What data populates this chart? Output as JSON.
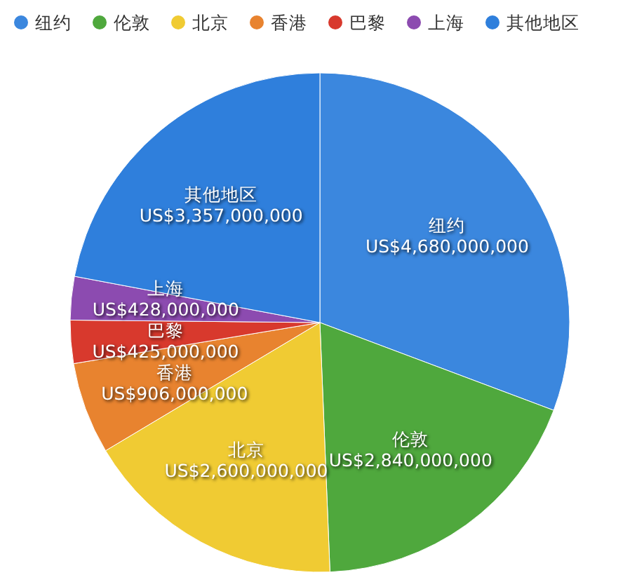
{
  "chart_data": {
    "type": "pie",
    "categories": [
      "纽约",
      "伦敦",
      "北京",
      "香港",
      "巴黎",
      "上海",
      "其他地区"
    ],
    "values": [
      4680000000,
      2840000000,
      2600000000,
      906000000,
      425000000,
      428000000,
      3357000000
    ],
    "colors": [
      "#3b87de",
      "#4fa83d",
      "#f0cb33",
      "#e8832f",
      "#d8392d",
      "#8c4bb0",
      "#2f7fdc"
    ],
    "value_labels": [
      "US$4,680,000,000",
      "US$2,840,000,000",
      "US$2,600,000,000",
      "US$906,000,000",
      "US$425,000,000",
      "US$428,000,000",
      "US$3,357,000,000"
    ],
    "legend": "top"
  }
}
